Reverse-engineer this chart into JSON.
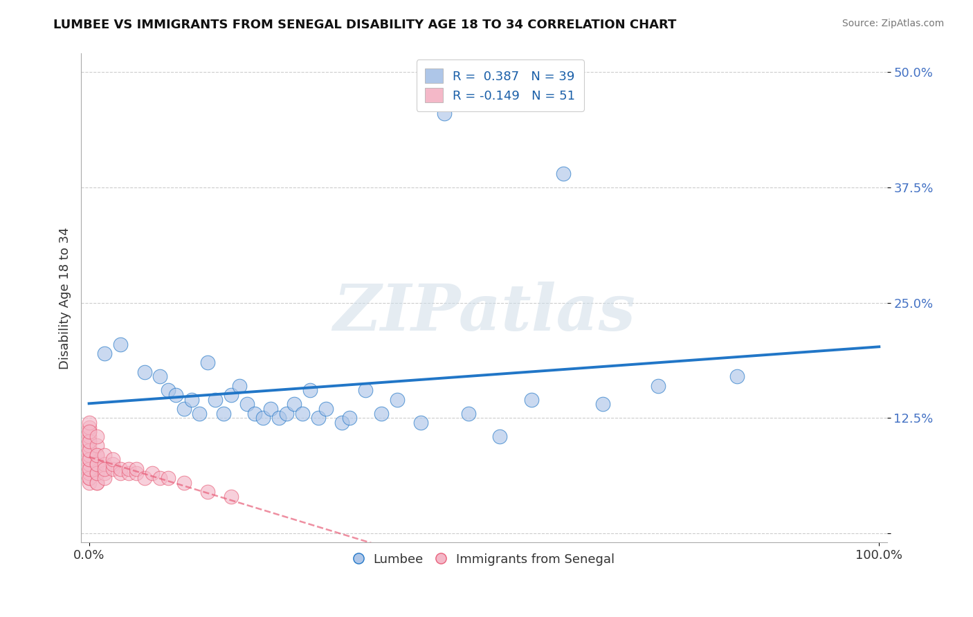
{
  "title": "LUMBEE VS IMMIGRANTS FROM SENEGAL DISABILITY AGE 18 TO 34 CORRELATION CHART",
  "source": "Source: ZipAtlas.com",
  "ylabel": "Disability Age 18 to 34",
  "legend_labels": [
    "Lumbee",
    "Immigrants from Senegal"
  ],
  "lumbee_R": 0.387,
  "lumbee_N": 39,
  "senegal_R": -0.149,
  "senegal_N": 51,
  "xlim": [
    -0.02,
    1.02
  ],
  "ylim": [
    -0.02,
    0.52
  ],
  "y_ticks": [
    0.0,
    0.125,
    0.25,
    0.375,
    0.5
  ],
  "y_tick_labels": [
    "",
    "12.5%",
    "25.0%",
    "37.5%",
    "50.0%"
  ],
  "background_color": "#ffffff",
  "grid_color": "#cccccc",
  "lumbee_color": "#aec6e8",
  "lumbee_line_color": "#2176c7",
  "senegal_color": "#f4b8c8",
  "senegal_line_color": "#e8607a",
  "watermark": "ZIPatlas",
  "lumbee_scatter_x": [
    0.02,
    0.04,
    0.07,
    0.09,
    0.1,
    0.11,
    0.12,
    0.13,
    0.14,
    0.15,
    0.16,
    0.17,
    0.18,
    0.19,
    0.2,
    0.21,
    0.22,
    0.23,
    0.24,
    0.25,
    0.26,
    0.27,
    0.28,
    0.29,
    0.3,
    0.32,
    0.33,
    0.35,
    0.37,
    0.39,
    0.42,
    0.45,
    0.48,
    0.52,
    0.56,
    0.6,
    0.65,
    0.72,
    0.82
  ],
  "lumbee_scatter_y": [
    0.195,
    0.205,
    0.175,
    0.17,
    0.155,
    0.15,
    0.135,
    0.145,
    0.13,
    0.185,
    0.145,
    0.13,
    0.15,
    0.16,
    0.14,
    0.13,
    0.125,
    0.135,
    0.125,
    0.13,
    0.14,
    0.13,
    0.155,
    0.125,
    0.135,
    0.12,
    0.125,
    0.155,
    0.13,
    0.145,
    0.12,
    0.455,
    0.13,
    0.105,
    0.145,
    0.39,
    0.14,
    0.16,
    0.17
  ],
  "senegal_scatter_x": [
    0.0,
    0.0,
    0.0,
    0.0,
    0.0,
    0.0,
    0.0,
    0.0,
    0.0,
    0.0,
    0.0,
    0.0,
    0.0,
    0.0,
    0.0,
    0.0,
    0.0,
    0.0,
    0.0,
    0.0,
    0.01,
    0.01,
    0.01,
    0.01,
    0.01,
    0.01,
    0.01,
    0.01,
    0.01,
    0.01,
    0.02,
    0.02,
    0.02,
    0.02,
    0.02,
    0.03,
    0.03,
    0.03,
    0.04,
    0.04,
    0.05,
    0.05,
    0.06,
    0.06,
    0.07,
    0.08,
    0.09,
    0.1,
    0.12,
    0.15,
    0.18
  ],
  "senegal_scatter_y": [
    0.055,
    0.06,
    0.065,
    0.07,
    0.075,
    0.08,
    0.085,
    0.09,
    0.095,
    0.1,
    0.105,
    0.11,
    0.115,
    0.12,
    0.06,
    0.07,
    0.08,
    0.09,
    0.1,
    0.11,
    0.055,
    0.065,
    0.075,
    0.085,
    0.095,
    0.105,
    0.055,
    0.065,
    0.075,
    0.085,
    0.065,
    0.075,
    0.085,
    0.06,
    0.07,
    0.07,
    0.075,
    0.08,
    0.065,
    0.07,
    0.065,
    0.07,
    0.065,
    0.07,
    0.06,
    0.065,
    0.06,
    0.06,
    0.055,
    0.045,
    0.04
  ]
}
